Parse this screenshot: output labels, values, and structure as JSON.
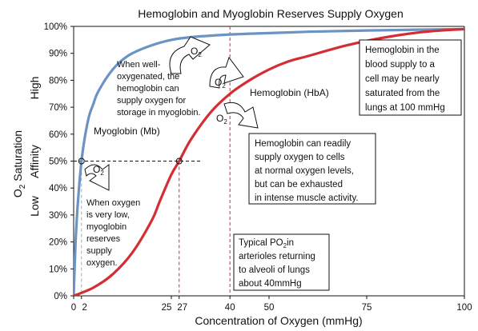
{
  "chart_data": {
    "type": "line",
    "title": "Hemoglobin and Myoglobin Reserves Supply Oxygen",
    "xlabel": "Concentration of  Oxygen (mmHg)",
    "ylabel_main": "O",
    "ylabel_sub": "2",
    "ylabel_rest": " Saturation",
    "affinity_label": "Affinity",
    "affinity_high": "High",
    "affinity_low": "Low",
    "xlim": [
      0,
      100
    ],
    "ylim": [
      0,
      100
    ],
    "x_ticks": [
      {
        "value": 0,
        "label": "0"
      },
      {
        "value": 2,
        "label": "2"
      },
      {
        "value": 25,
        "label": "25"
      },
      {
        "value": 27,
        "label": "27"
      },
      {
        "value": 40,
        "label": "40"
      },
      {
        "value": 50,
        "label": "50"
      },
      {
        "value": 75,
        "label": "75"
      },
      {
        "value": 100,
        "label": "100"
      }
    ],
    "y_ticks": [
      {
        "value": 0,
        "label": "0%"
      },
      {
        "value": 10,
        "label": "10%"
      },
      {
        "value": 20,
        "label": "20%"
      },
      {
        "value": 30,
        "label": "30%"
      },
      {
        "value": 40,
        "label": "40%"
      },
      {
        "value": 50,
        "label": "50%"
      },
      {
        "value": 60,
        "label": "60%"
      },
      {
        "value": 70,
        "label": "70%"
      },
      {
        "value": 80,
        "label": "80%"
      },
      {
        "value": 90,
        "label": "90%"
      },
      {
        "value": 100,
        "label": "100%"
      }
    ],
    "series": [
      {
        "name": "Myoglobin (Mb)",
        "color": "#6b93c4",
        "x": [
          0,
          0.5,
          1,
          2,
          3,
          4,
          5,
          6,
          8,
          10,
          12,
          15,
          20,
          25,
          30,
          40,
          50,
          60,
          75,
          100
        ],
        "y": [
          0,
          20,
          33,
          50,
          60,
          67,
          71,
          75,
          80,
          84,
          87,
          90,
          93,
          95,
          96,
          97,
          97.5,
          98,
          98.5,
          99
        ]
      },
      {
        "name": "Hemoglobin (HbA)",
        "color": "#d42e34",
        "x": [
          0,
          5,
          10,
          15,
          20,
          22,
          25,
          27,
          30,
          35,
          40,
          45,
          50,
          55,
          60,
          70,
          80,
          90,
          100
        ],
        "y": [
          0,
          3,
          8,
          16,
          28,
          35,
          45,
          50,
          58,
          68,
          75,
          80,
          84,
          87,
          89,
          93,
          96,
          98,
          99
        ]
      }
    ],
    "reference_lines": [
      {
        "axis": "x",
        "value": 2,
        "color": "#8ab0d8"
      },
      {
        "axis": "x",
        "value": 27,
        "color": "#d42e34"
      },
      {
        "axis": "x",
        "value": 40,
        "color": "#d42e34"
      },
      {
        "axis": "y",
        "value": 50,
        "color": "#111111"
      }
    ],
    "markers": [
      {
        "x": 2,
        "y": 50
      },
      {
        "x": 27,
        "y": 50
      }
    ],
    "series_labels": {
      "myoglobin": "Myoglobin (Mb)",
      "hemoglobin": "Hemoglobin (HbA)"
    },
    "annotations": {
      "well_oxygenated": [
        "When well-",
        "oxygenated, the",
        "hemoglobin can",
        "supply oxygen for",
        "storage in myoglobin."
      ],
      "low_oxygen": [
        "When oxygen",
        "is very low,",
        "myoglobin",
        "reserves",
        "supply",
        "oxygen."
      ],
      "blood_supply_box": [
        "Hemoglobin in the",
        "blood supply to a",
        "cell may be nearly",
        "saturated from the",
        "lungs at 100 mmHg"
      ],
      "readily_supply_box": [
        "Hemoglobin can readily",
        "supply oxygen to cells",
        "at normal oxygen levels,",
        "but can be exhausted",
        "in intense muscle activity."
      ],
      "po2_box_line1_main": "Typical PO",
      "po2_box_line1_sub": "2",
      "po2_box_line1_rest": "in",
      "po2_box_rest": [
        "arterioles returning",
        "to alveoli of lungs",
        "about 40mmHg"
      ],
      "arrow_o2_main": "O",
      "arrow_o2_sub": "2"
    }
  }
}
